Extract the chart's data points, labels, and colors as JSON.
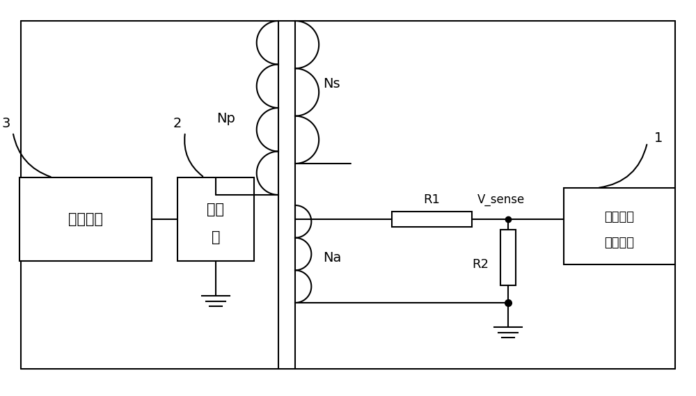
{
  "background_color": "#ffffff",
  "line_color": "#000000",
  "line_width": 1.5,
  "figsize": [
    10.0,
    5.69
  ],
  "dpi": 100,
  "ctrl_label": "控制模块",
  "sw_label1": "开关",
  "sw_label2": "管",
  "fb_label1": "电流比较",
  "fb_label2": "反馈电路",
  "np_label": "Np",
  "ns_label": "Ns",
  "na_label": "Na",
  "r1_label": "R1",
  "r2_label": "R2",
  "vsense_label": "V_sense",
  "num1": "1",
  "num2": "2",
  "num3": "3"
}
